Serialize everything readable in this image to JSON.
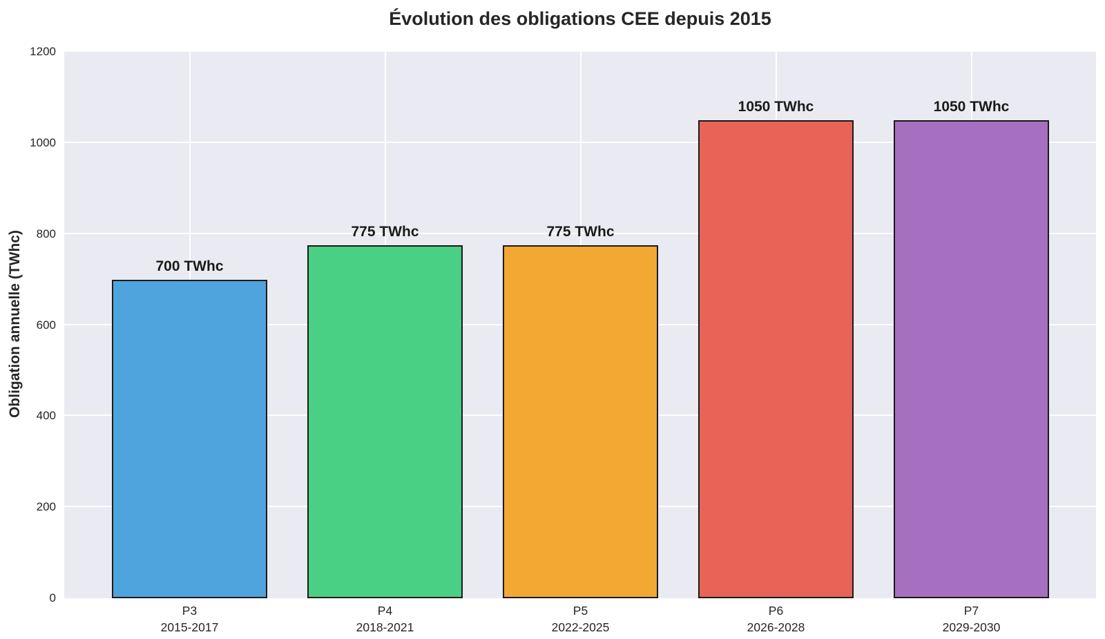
{
  "title": "Évolution des obligations CEE depuis 2015",
  "chart_data": {
    "type": "bar",
    "title": "Évolution des obligations CEE depuis 2015",
    "ylabel": "Obligation annuelle (TWhc)",
    "xlabel": "",
    "categories": [
      {
        "period": "P3",
        "years": "2015-2017"
      },
      {
        "period": "P4",
        "years": "2018-2021"
      },
      {
        "period": "P5",
        "years": "2022-2025"
      },
      {
        "period": "P6",
        "years": "2026-2028"
      },
      {
        "period": "P7",
        "years": "2029-2030"
      }
    ],
    "values": [
      700,
      775,
      775,
      1050,
      1050
    ],
    "bar_labels": [
      "700 TWhc",
      "775 TWhc",
      "775 TWhc",
      "1050 TWhc",
      "1050 TWhc"
    ],
    "bar_colors": [
      "#4fa4de",
      "#4ad084",
      "#f2a833",
      "#e76457",
      "#a76fbf"
    ],
    "bar_edge_color": "#1a1a1a",
    "ylim": [
      0,
      1200
    ],
    "yticks": [
      0,
      200,
      400,
      600,
      800,
      1000,
      1200
    ],
    "grid": true,
    "gridline_color": "#ffffff",
    "plot_background": "#eaeaf2",
    "legend": "none"
  }
}
